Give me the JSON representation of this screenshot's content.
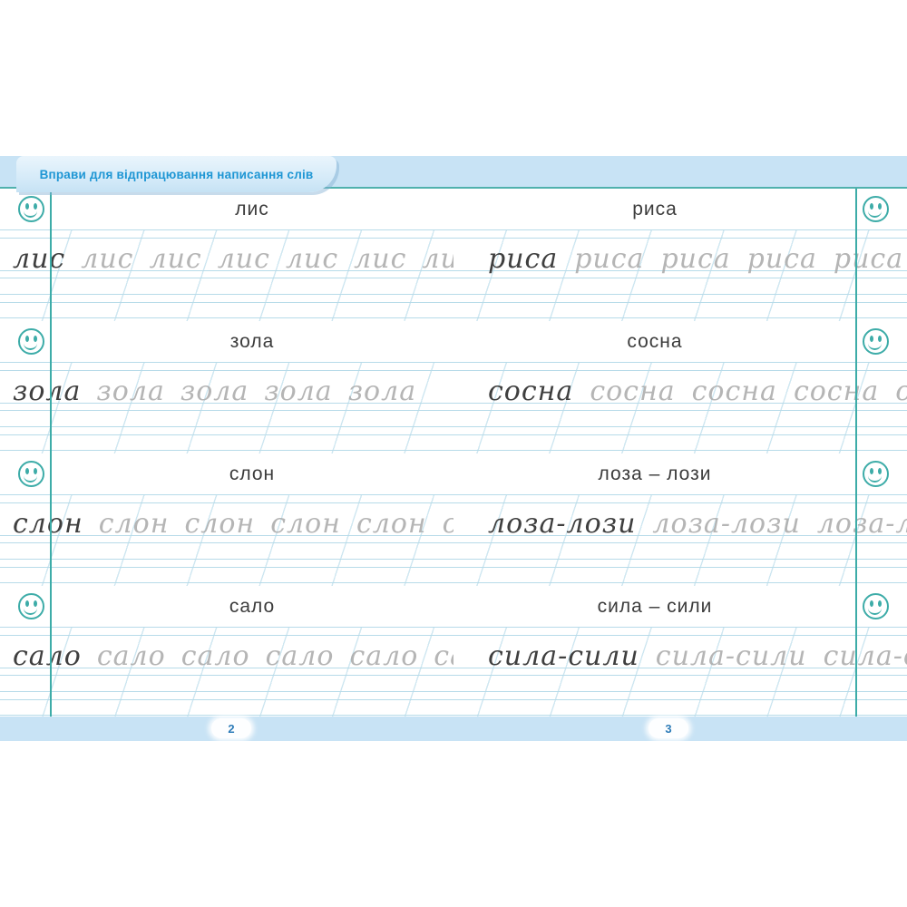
{
  "header": {
    "title": "Вправи для відпрацювання написання слів"
  },
  "colors": {
    "accent_teal": "#3daca8",
    "band_blue": "#c8e3f5",
    "title_blue": "#1e96d4",
    "ruling_blue": "#b7dbe9"
  },
  "icons": {
    "margin_marker": "smiley-face-icon"
  },
  "rows": [
    {
      "cells": [
        {
          "label": "лис",
          "trace_word": "лис",
          "repeat": 7
        },
        {
          "label": "риса",
          "trace_word": "риса",
          "repeat": 5
        }
      ]
    },
    {
      "cells": [
        {
          "label": "зола",
          "trace_word": "зола",
          "repeat": 5
        },
        {
          "label": "сосна",
          "trace_word": "сосна",
          "repeat": 5
        }
      ]
    },
    {
      "cells": [
        {
          "label": "слон",
          "trace_word": "слон",
          "repeat": 6
        },
        {
          "label": "лоза – лози",
          "trace_word": "лоза-лози",
          "repeat": 3
        }
      ]
    },
    {
      "cells": [
        {
          "label": "сало",
          "trace_word": "сало",
          "repeat": 6
        },
        {
          "label": "сила – сили",
          "trace_word": "сила-сили",
          "repeat": 3
        }
      ]
    }
  ],
  "footer": {
    "left_page_number": "2",
    "right_page_number": "3"
  }
}
